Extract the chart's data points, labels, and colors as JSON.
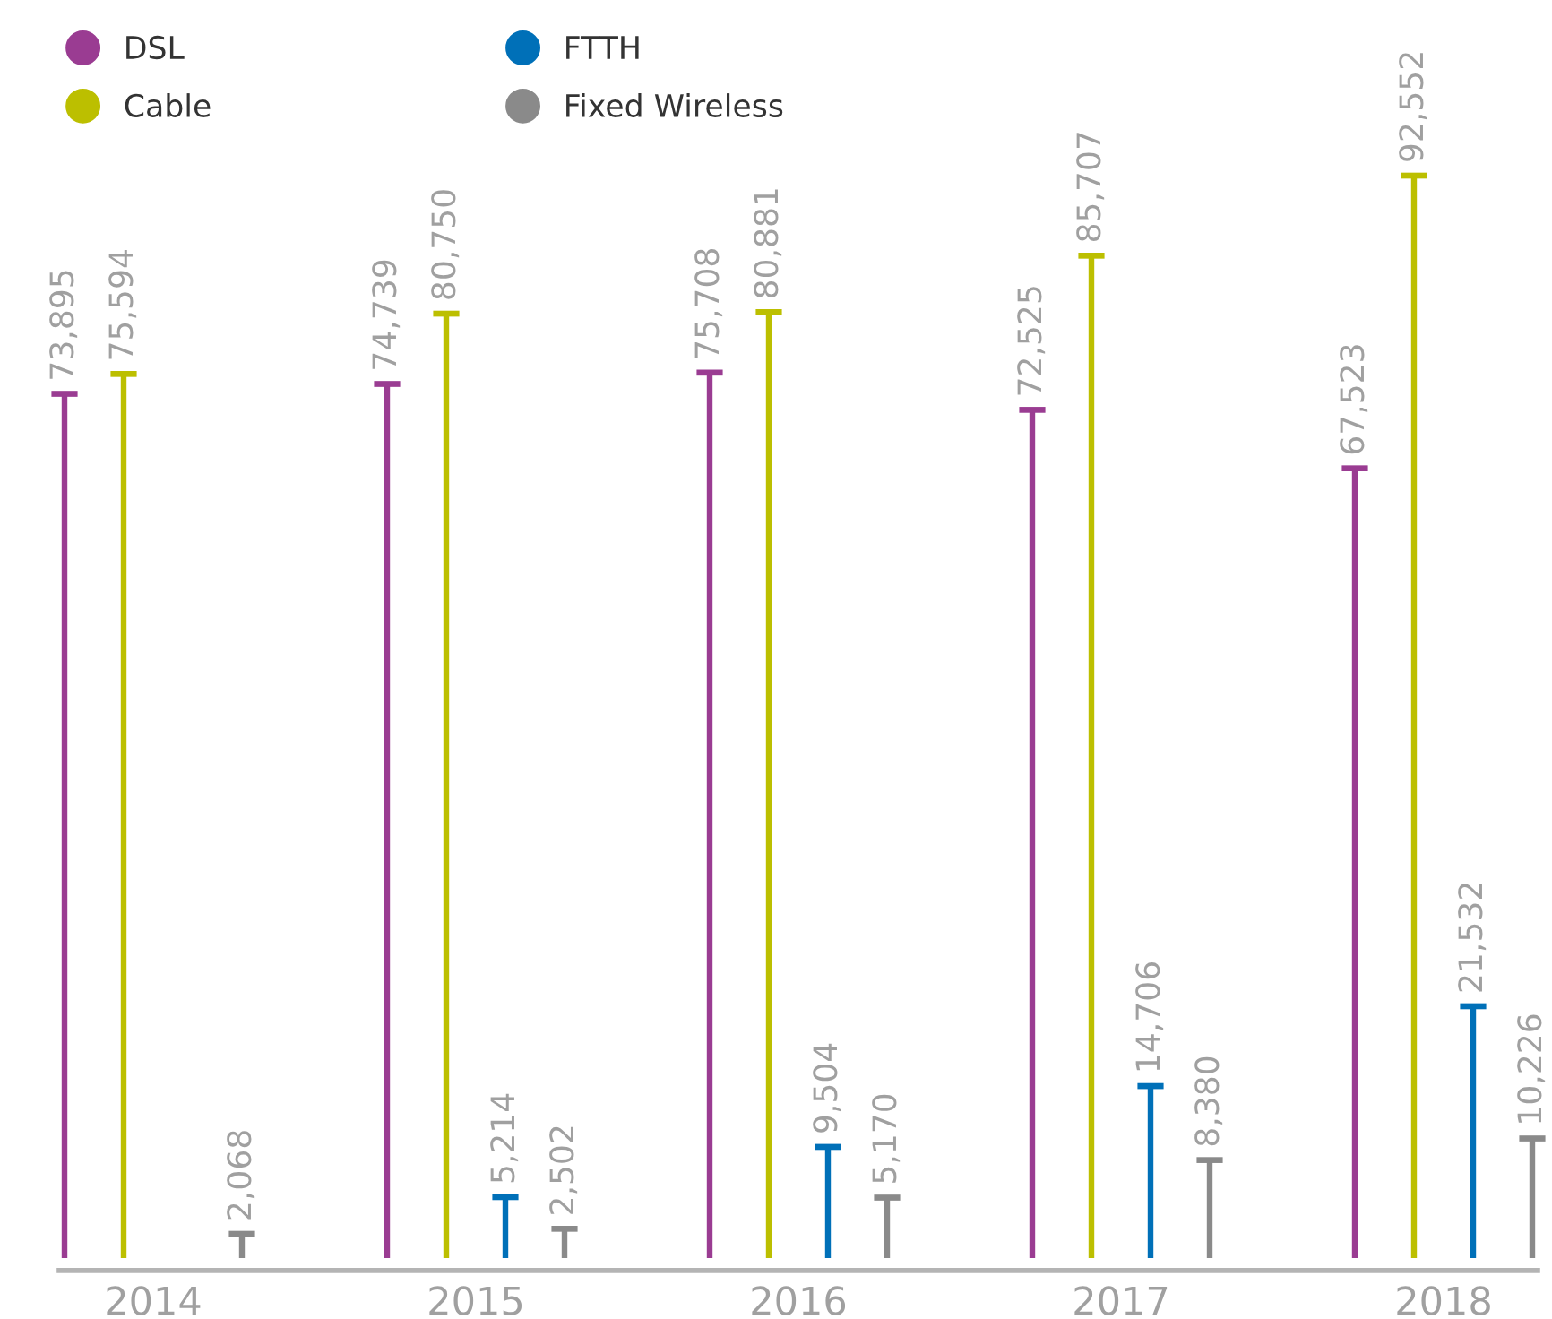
{
  "chart_data": {
    "type": "bar",
    "categories": [
      "2014",
      "2015",
      "2016",
      "2017",
      "2018"
    ],
    "series": [
      {
        "name": "DSL",
        "color": "#9a3c92",
        "values": [
          73895,
          74739,
          75708,
          72525,
          67523
        ],
        "value_labels": [
          "73,895",
          "74,739",
          "75,708",
          "72,525",
          "67,523"
        ]
      },
      {
        "name": "Cable",
        "color": "#bcbf00",
        "values": [
          75594,
          80750,
          80881,
          85707,
          92552
        ],
        "value_labels": [
          "75,594",
          "80,750",
          "80,881",
          "85,707",
          "92,552"
        ]
      },
      {
        "name": "FTTH",
        "color": "#0070b8",
        "values": [
          null,
          5214,
          9504,
          14706,
          21532
        ],
        "value_labels": [
          null,
          "5,214",
          "9,504",
          "14,706",
          "21,532"
        ]
      },
      {
        "name": "Fixed Wireless",
        "color": "#8a8a8a",
        "values": [
          2068,
          2502,
          5170,
          8380,
          10226
        ],
        "value_labels": [
          "2,068",
          "2,502",
          "5,170",
          "8,380",
          "10,226"
        ]
      }
    ],
    "legend": "top left"
  }
}
